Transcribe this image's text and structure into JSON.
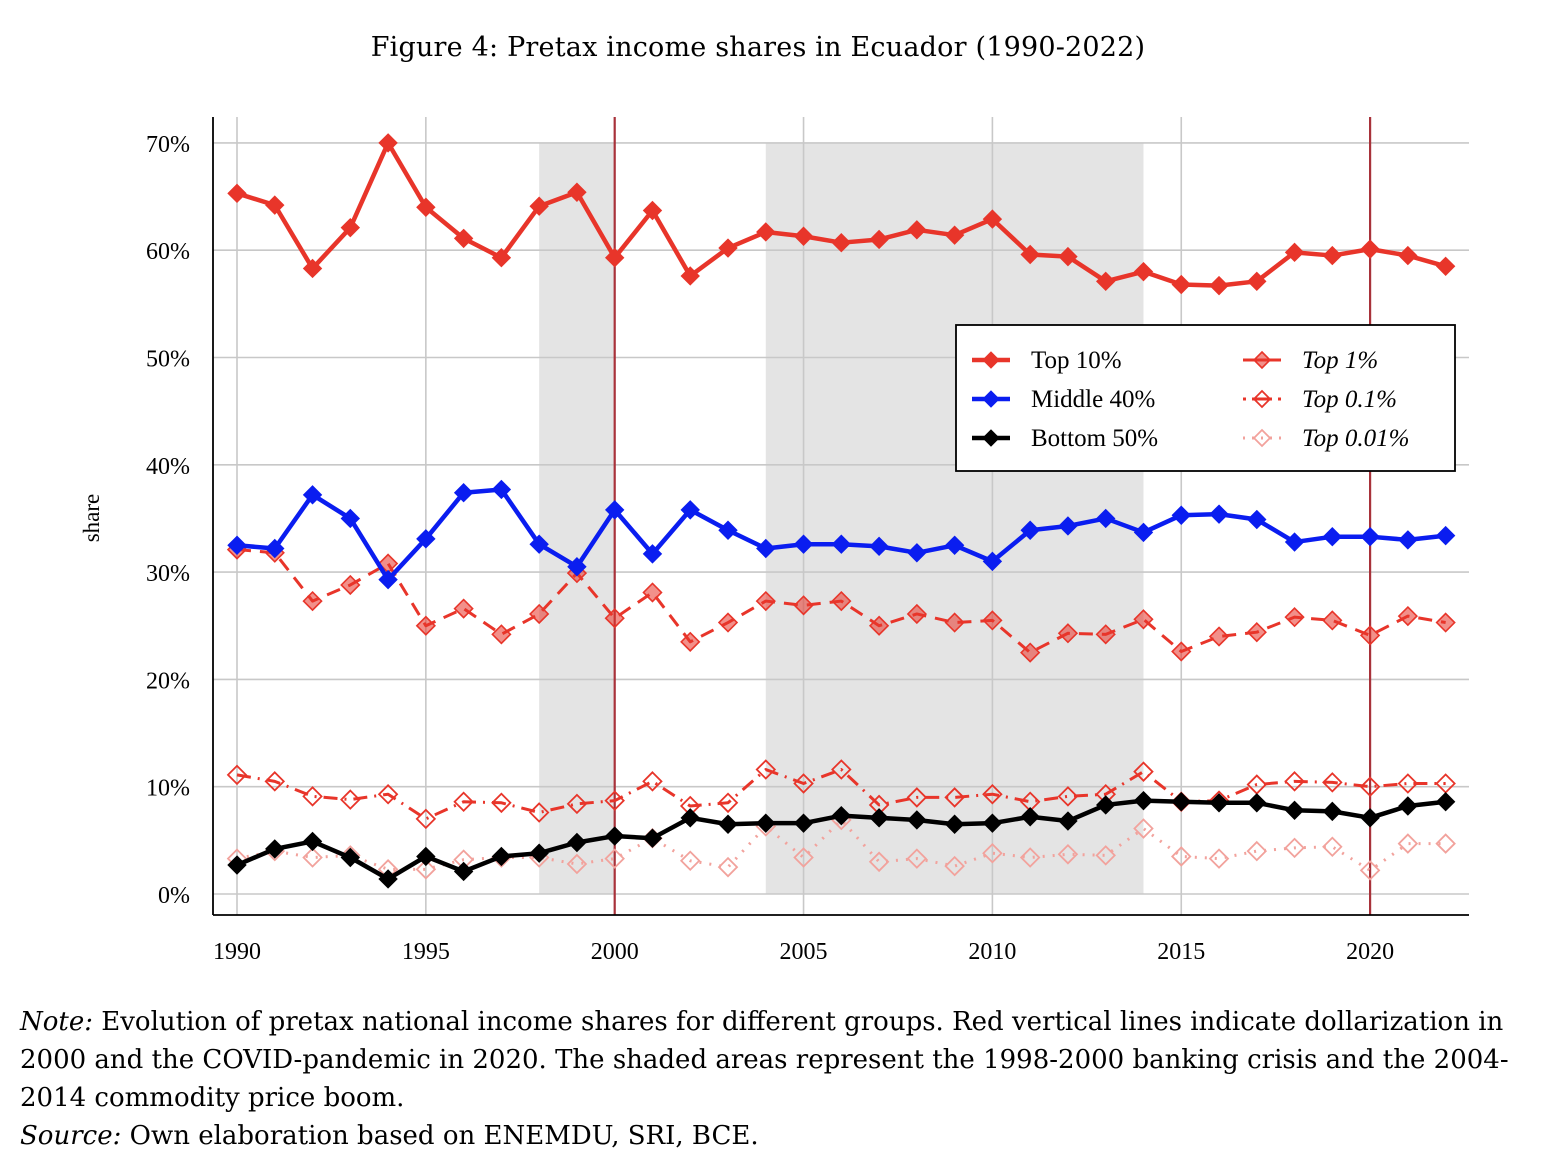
{
  "figure": {
    "title": "Figure 4: Pretax income shares in Ecuador (1990-2022)",
    "note_label": "Note:",
    "note_text": " Evolution of pretax national income shares for different groups. Red vertical lines indicate dollarization in 2000 and the COVID-pandemic in 2020. The shaded areas represent the 1998-2000 banking crisis and the 2004-2014 commodity price boom.",
    "source_label": "Source:",
    "source_text": " Own elaboration based on ENEMDU, SRI, BCE."
  },
  "chart_data": {
    "type": "line",
    "title": "Figure 4: Pretax income shares in Ecuador (1990-2022)",
    "xlabel": "",
    "ylabel": "share",
    "xlim": [
      1989.9,
      2022.6
    ],
    "ylim": [
      -2,
      72.5
    ],
    "xticks": [
      1990,
      1995,
      2000,
      2005,
      2010,
      2015,
      2020
    ],
    "xtick_labels": [
      "1990",
      "1995",
      "2000",
      "2005",
      "2010",
      "2015",
      "2020"
    ],
    "yticks": [
      0,
      10,
      20,
      30,
      40,
      50,
      60,
      70
    ],
    "ytick_labels": [
      "0%",
      "10%",
      "20%",
      "30%",
      "40%",
      "50%",
      "60%",
      "70%"
    ],
    "grid": true,
    "legend_position": "right, upper-middle",
    "shaded_periods": [
      {
        "start": 1998,
        "end": 2000,
        "label": "banking crisis",
        "color": "#e4e4e4"
      },
      {
        "start": 2004,
        "end": 2014,
        "label": "commodity price boom",
        "color": "#e4e4e4"
      }
    ],
    "vertical_lines": [
      {
        "x": 2000,
        "label": "dollarization",
        "color": "#a8323a"
      },
      {
        "x": 2020,
        "label": "COVID-pandemic",
        "color": "#a8323a"
      }
    ],
    "x": [
      1990,
      1991,
      1992,
      1993,
      1994,
      1995,
      1996,
      1997,
      1998,
      1999,
      2000,
      2001,
      2002,
      2003,
      2004,
      2005,
      2006,
      2007,
      2008,
      2009,
      2010,
      2011,
      2012,
      2013,
      2014,
      2015,
      2016,
      2017,
      2018,
      2019,
      2020,
      2021,
      2022
    ],
    "series": [
      {
        "name": "Top 10%",
        "italic": false,
        "color": "#e8352a",
        "style": "solid",
        "marker": "diamond-filled",
        "values": [
          65.3,
          64.2,
          58.3,
          62.1,
          70.0,
          64.0,
          61.1,
          59.3,
          64.1,
          65.4,
          59.3,
          63.7,
          57.6,
          60.2,
          61.7,
          61.3,
          60.7,
          61.0,
          61.9,
          61.4,
          62.9,
          59.6,
          59.4,
          57.1,
          58.0,
          56.8,
          56.7,
          57.1,
          59.8,
          59.5,
          60.1,
          59.5,
          58.5
        ]
      },
      {
        "name": "Middle 40%",
        "italic": false,
        "color": "#0a1df0",
        "style": "solid",
        "marker": "diamond-filled",
        "values": [
          32.5,
          32.2,
          37.2,
          35.0,
          29.3,
          33.1,
          37.4,
          37.7,
          32.6,
          30.5,
          35.8,
          31.7,
          35.8,
          33.9,
          32.2,
          32.6,
          32.6,
          32.4,
          31.8,
          32.5,
          31.0,
          33.9,
          34.3,
          35.0,
          33.7,
          35.3,
          35.4,
          34.9,
          32.8,
          33.3,
          33.3,
          33.0,
          33.4
        ]
      },
      {
        "name": "Bottom 50%",
        "italic": false,
        "color": "#000000",
        "style": "solid",
        "marker": "diamond-filled",
        "values": [
          2.7,
          4.2,
          4.9,
          3.4,
          1.4,
          3.5,
          2.1,
          3.5,
          3.8,
          4.8,
          5.4,
          5.2,
          7.1,
          6.5,
          6.6,
          6.6,
          7.3,
          7.1,
          6.9,
          6.5,
          6.6,
          7.2,
          6.8,
          8.3,
          8.7,
          8.6,
          8.5,
          8.5,
          7.8,
          7.7,
          7.1,
          8.2,
          8.6
        ]
      },
      {
        "name": "Top 1%",
        "italic": true,
        "color": "#e8352a",
        "style": "dashed",
        "marker": "diamond-semi",
        "values": [
          32.1,
          31.8,
          27.3,
          28.8,
          30.8,
          25.0,
          26.6,
          24.2,
          26.1,
          29.9,
          25.7,
          28.1,
          23.5,
          25.3,
          27.3,
          26.9,
          27.3,
          25.0,
          26.1,
          25.3,
          25.5,
          22.5,
          24.3,
          24.2,
          25.6,
          22.6,
          24.0,
          24.4,
          25.8,
          25.5,
          24.1,
          25.9,
          25.3
        ]
      },
      {
        "name": "Top 0.1%",
        "italic": true,
        "color": "#e8352a",
        "style": "dash-dot",
        "marker": "diamond-open",
        "values": [
          11.1,
          10.5,
          9.1,
          8.8,
          9.3,
          7.0,
          8.6,
          8.5,
          7.6,
          8.4,
          8.7,
          10.5,
          8.2,
          8.5,
          11.6,
          10.3,
          11.6,
          8.3,
          9.0,
          9.0,
          9.3,
          8.6,
          9.1,
          9.3,
          11.4,
          8.6,
          8.7,
          10.2,
          10.5,
          10.4,
          10.0,
          10.3,
          10.3
        ]
      },
      {
        "name": "Top 0.01%",
        "italic": true,
        "color": "#f2a29c",
        "style": "dotted",
        "marker": "diamond-open",
        "values": [
          3.3,
          4.0,
          3.4,
          3.6,
          2.3,
          2.3,
          3.2,
          3.4,
          3.4,
          2.8,
          3.3,
          5.2,
          3.1,
          2.5,
          6.3,
          3.4,
          6.9,
          3.0,
          3.3,
          2.6,
          3.8,
          3.4,
          3.7,
          3.6,
          6.1,
          3.5,
          3.3,
          4.0,
          4.3,
          4.4,
          2.2,
          4.7,
          4.7
        ]
      }
    ]
  }
}
